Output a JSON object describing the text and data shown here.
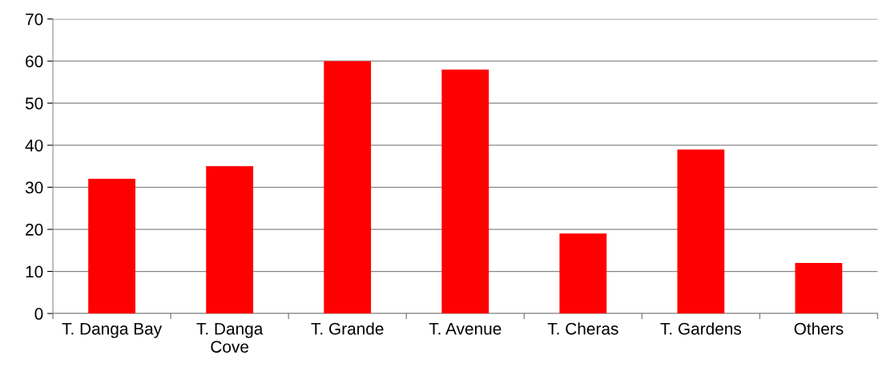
{
  "chart_data": {
    "type": "bar",
    "categories": [
      "T. Danga Bay",
      "T. Danga\nCove",
      "T. Grande",
      "T. Avenue",
      "T. Cheras",
      "T. Gardens",
      "Others"
    ],
    "values": [
      32,
      35,
      60,
      58,
      19,
      39,
      12
    ],
    "color": "#ff0000",
    "ylim": [
      0,
      70
    ],
    "yticks": [
      0,
      10,
      20,
      30,
      40,
      50,
      60,
      70
    ],
    "grid": "y",
    "legend": false
  }
}
